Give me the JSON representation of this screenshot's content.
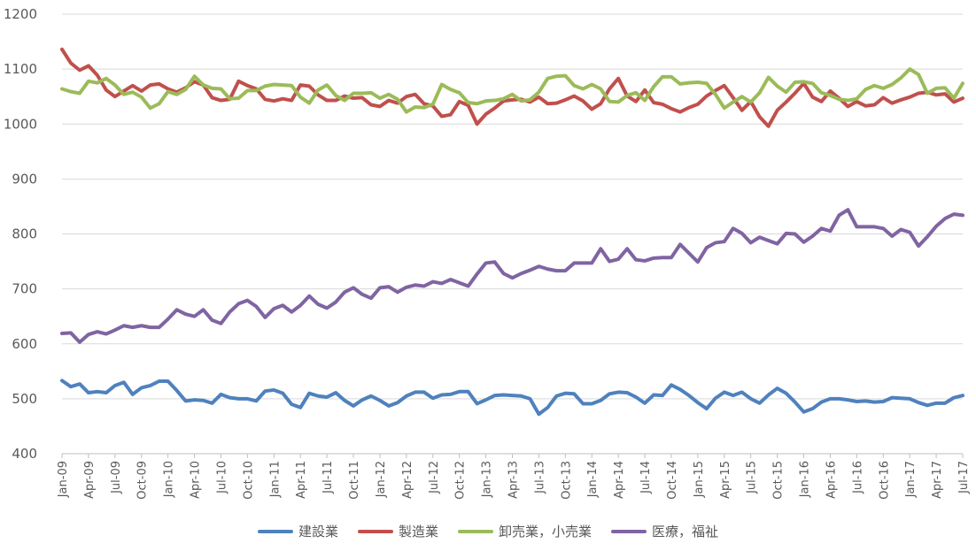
{
  "chart_data": {
    "type": "line",
    "title": "",
    "xlabel": "",
    "ylabel": "",
    "ylim": [
      400,
      1200
    ],
    "yticks": [
      400,
      500,
      600,
      700,
      800,
      900,
      1000,
      1100,
      1200
    ],
    "grid": "horizontal",
    "legend_position": "bottom",
    "x_tick_labels": [
      "Jan-09",
      "Apr-09",
      "Jul-09",
      "Oct-09",
      "Jan-10",
      "Apr-10",
      "Jul-10",
      "Oct-10",
      "Jan-11",
      "Apr-11",
      "Jul-11",
      "Oct-11",
      "Jan-12",
      "Apr-12",
      "Jul-12",
      "Oct-12",
      "Jan-13",
      "Apr-13",
      "Jul-13",
      "Oct-13",
      "Jan-14",
      "Apr-14",
      "Jul-14",
      "Oct-14",
      "Jan-15",
      "Apr-15",
      "Jul-15",
      "Oct-15",
      "Jan-16",
      "Apr-16",
      "Jul-16",
      "Oct-16",
      "Jan-17",
      "Apr-17",
      "Jul-17"
    ],
    "x_start": "Jan-09",
    "x_end": "Jul-17",
    "series": [
      {
        "name": "建設業",
        "color": "#4f81bd",
        "values": [
          533,
          522,
          527,
          511,
          513,
          511,
          524,
          530,
          508,
          520,
          524,
          532,
          532,
          515,
          496,
          498,
          497,
          492,
          508,
          502,
          500,
          500,
          496,
          514,
          516,
          510,
          490,
          484,
          510,
          505,
          503,
          511,
          497,
          487,
          498,
          505,
          497,
          487,
          493,
          505,
          512,
          512,
          501,
          507,
          508,
          513,
          513,
          491,
          498,
          506,
          507,
          506,
          505,
          500,
          472,
          484,
          505,
          510,
          509,
          491,
          491,
          497,
          509,
          512,
          511,
          503,
          492,
          507,
          506,
          525,
          517,
          506,
          493,
          482,
          501,
          512,
          506,
          512,
          500,
          492,
          507,
          519,
          510,
          494,
          476,
          482,
          494,
          500,
          500,
          498,
          495,
          496,
          494,
          495,
          502,
          501,
          500,
          493,
          488,
          492,
          492,
          502,
          506
        ],
        "values_note": "monthly values Jan-09 to Jul-17"
      },
      {
        "name": "製造業",
        "color": "#c0504d",
        "values": [
          1136,
          1111,
          1098,
          1106,
          1089,
          1062,
          1050,
          1060,
          1070,
          1060,
          1071,
          1073,
          1064,
          1058,
          1066,
          1077,
          1071,
          1048,
          1043,
          1045,
          1078,
          1070,
          1064,
          1045,
          1042,
          1046,
          1043,
          1071,
          1069,
          1053,
          1043,
          1043,
          1051,
          1047,
          1048,
          1035,
          1032,
          1043,
          1038,
          1050,
          1054,
          1037,
          1033,
          1014,
          1017,
          1041,
          1034,
          1000,
          1018,
          1029,
          1042,
          1044,
          1045,
          1040,
          1049,
          1037,
          1038,
          1044,
          1051,
          1042,
          1027,
          1037,
          1064,
          1083,
          1051,
          1041,
          1062,
          1039,
          1036,
          1028,
          1022,
          1030,
          1036,
          1051,
          1061,
          1070,
          1048,
          1025,
          1041,
          1013,
          996,
          1025,
          1040,
          1056,
          1074,
          1049,
          1041,
          1060,
          1047,
          1032,
          1041,
          1033,
          1035,
          1048,
          1038,
          1044,
          1049,
          1056,
          1058,
          1053,
          1055,
          1040,
          1047
        ]
      },
      {
        "name": "卸売業，小売業",
        "color": "#9bbb59",
        "values": [
          1064,
          1059,
          1056,
          1078,
          1075,
          1083,
          1071,
          1054,
          1058,
          1049,
          1029,
          1037,
          1059,
          1054,
          1063,
          1087,
          1071,
          1065,
          1064,
          1046,
          1047,
          1061,
          1061,
          1069,
          1072,
          1071,
          1070,
          1049,
          1038,
          1062,
          1071,
          1052,
          1043,
          1056,
          1056,
          1057,
          1047,
          1054,
          1045,
          1022,
          1031,
          1030,
          1036,
          1072,
          1063,
          1057,
          1039,
          1037,
          1042,
          1043,
          1046,
          1054,
          1042,
          1044,
          1058,
          1083,
          1087,
          1088,
          1070,
          1064,
          1072,
          1064,
          1041,
          1040,
          1052,
          1057,
          1043,
          1068,
          1086,
          1086,
          1073,
          1075,
          1076,
          1074,
          1054,
          1029,
          1040,
          1050,
          1040,
          1057,
          1085,
          1069,
          1058,
          1076,
          1077,
          1074,
          1057,
          1052,
          1045,
          1043,
          1046,
          1063,
          1070,
          1065,
          1072,
          1084,
          1100,
          1090,
          1056,
          1065,
          1066,
          1047,
          1074
        ]
      },
      {
        "name": "医療，福祉",
        "color": "#8064a2",
        "values": [
          619,
          620,
          603,
          617,
          622,
          618,
          625,
          633,
          630,
          633,
          630,
          630,
          645,
          662,
          654,
          650,
          662,
          643,
          637,
          658,
          673,
          679,
          668,
          648,
          664,
          670,
          658,
          670,
          687,
          672,
          665,
          676,
          694,
          702,
          690,
          683,
          702,
          704,
          694,
          703,
          707,
          705,
          713,
          710,
          717,
          711,
          705,
          727,
          747,
          749,
          728,
          720,
          728,
          734,
          741,
          736,
          733,
          733,
          747,
          747,
          747,
          773,
          750,
          754,
          773,
          753,
          751,
          756,
          757,
          757,
          781,
          765,
          749,
          775,
          784,
          786,
          810,
          801,
          784,
          794,
          788,
          782,
          801,
          800,
          785,
          796,
          810,
          805,
          834,
          844,
          813,
          813,
          813,
          810,
          796,
          808,
          803,
          778,
          795,
          814,
          828,
          836,
          834
        ]
      }
    ]
  }
}
